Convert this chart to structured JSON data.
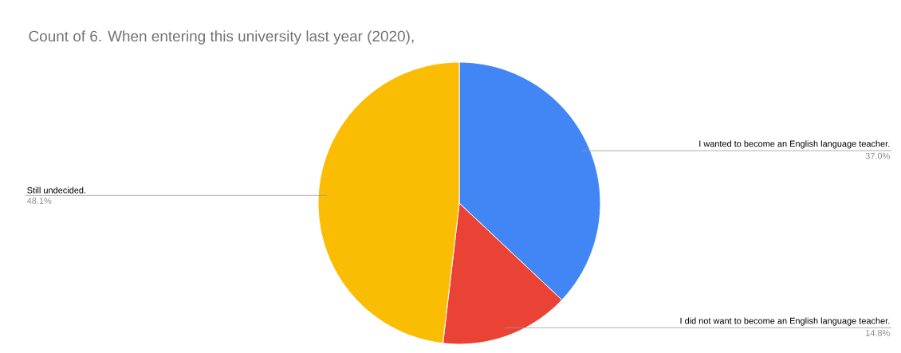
{
  "chart_data": {
    "type": "pie",
    "title": "Count of 6. When entering this university last year (2020),",
    "categories": [
      "I wanted to become an English language teacher.",
      "I did not want to become an English language teacher.",
      "Still undecided."
    ],
    "values": [
      37.0,
      14.8,
      48.1
    ],
    "colors": [
      "#4285f4",
      "#ea4335",
      "#fbbc04"
    ],
    "value_labels": [
      "37.0%",
      "14.8%",
      "48.1%"
    ]
  }
}
